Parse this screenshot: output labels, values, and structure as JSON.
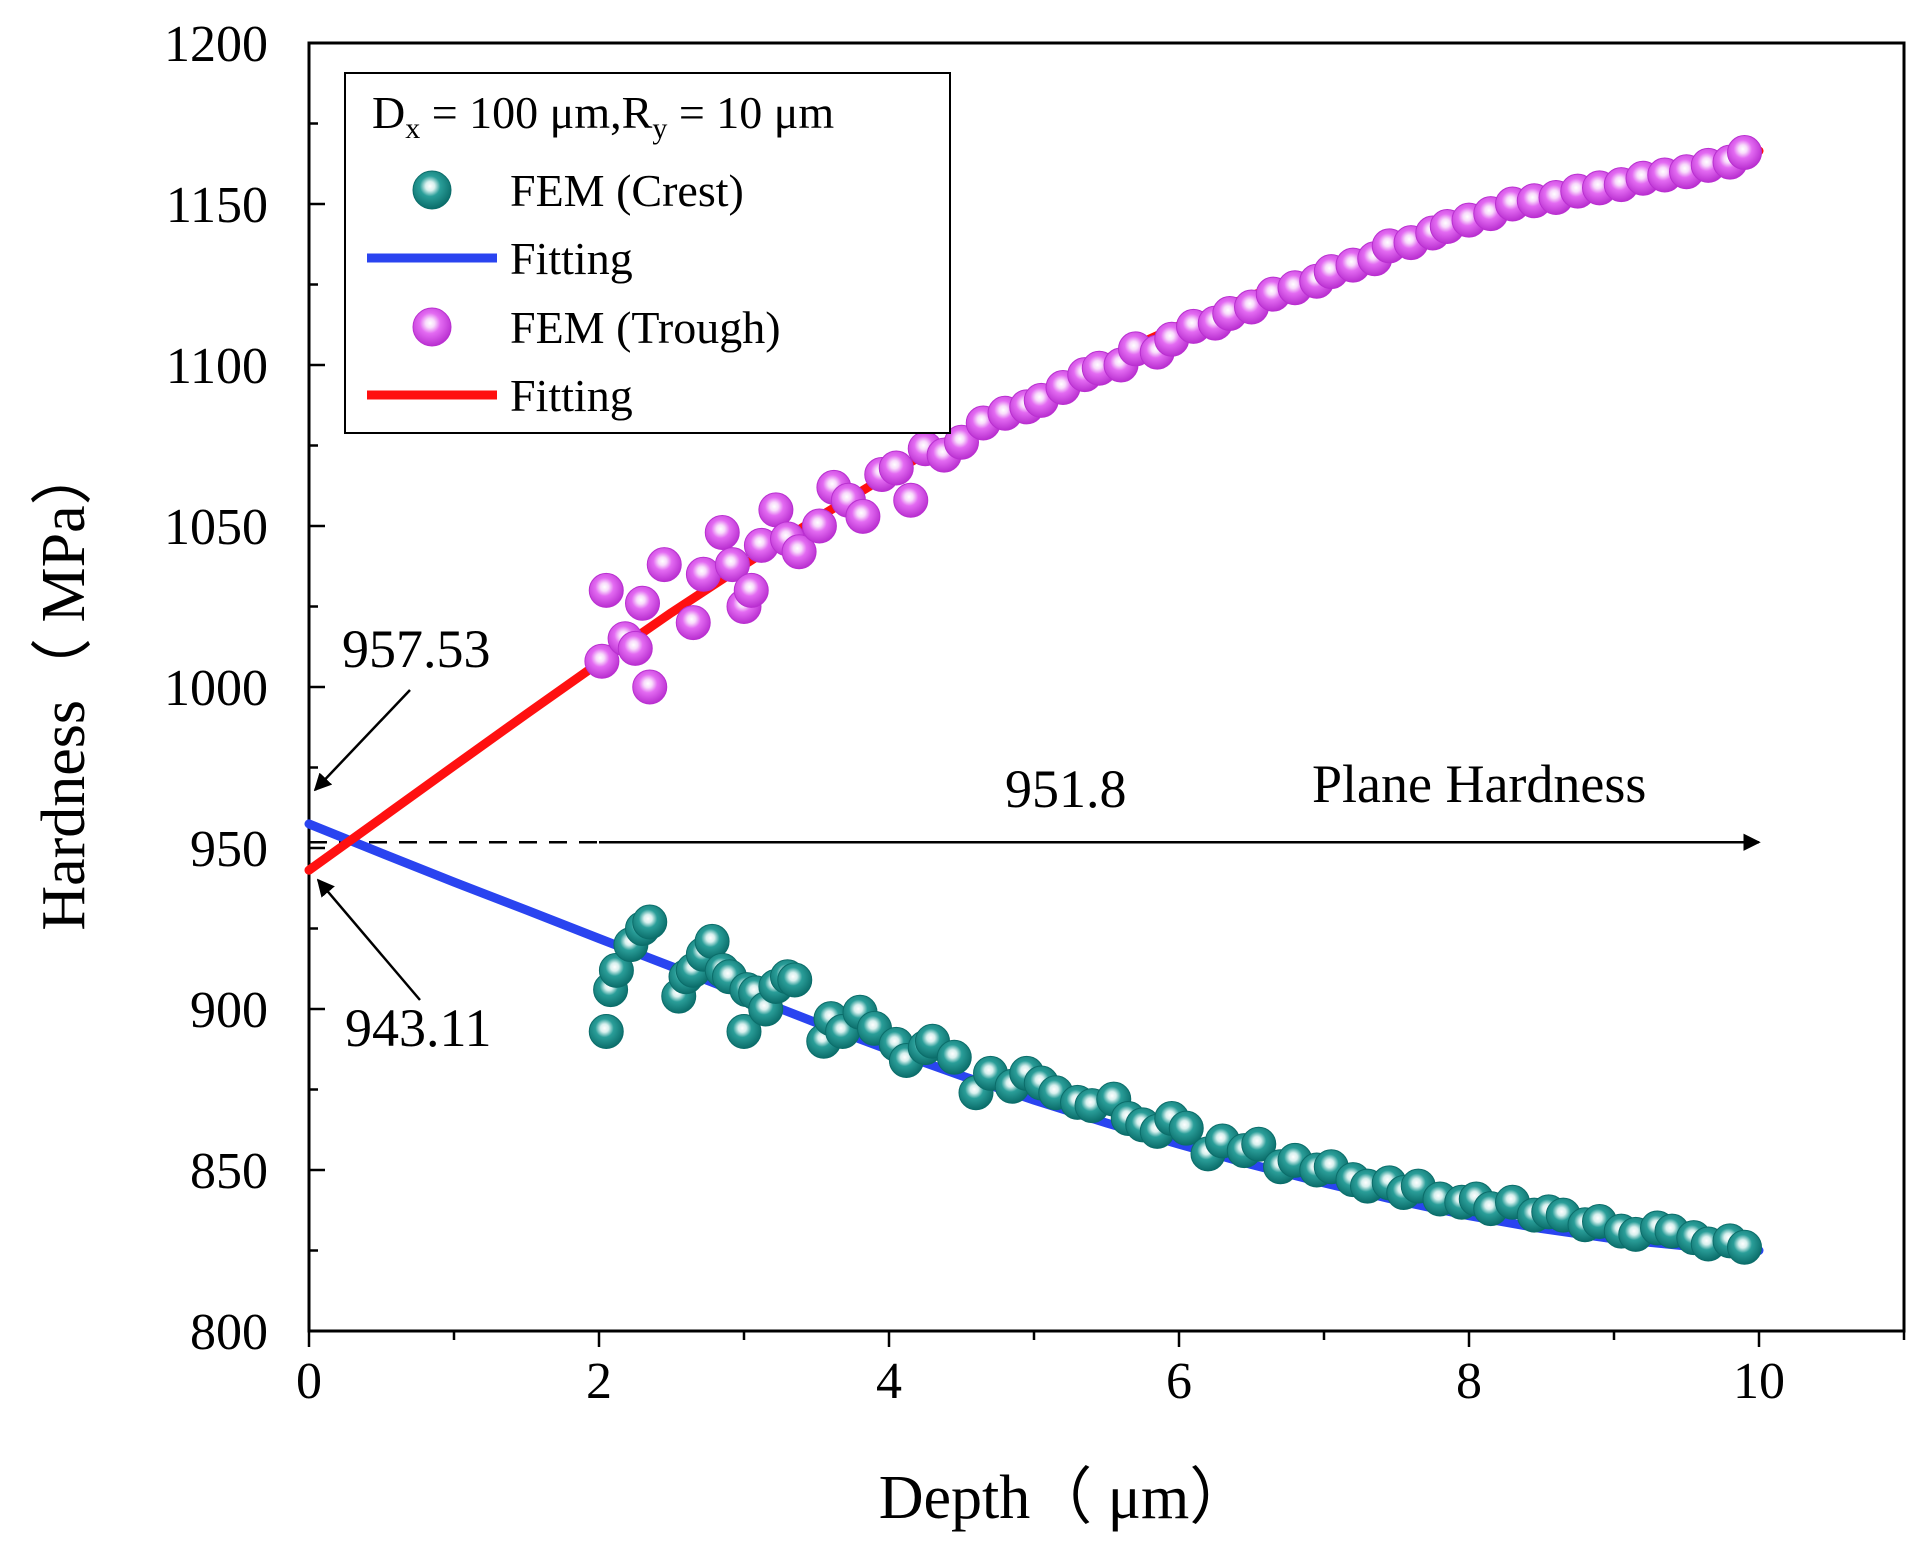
{
  "chart_data": {
    "type": "scatter",
    "xlabel": "Depth（  μm）",
    "ylabel": "Hardness（  MPa）",
    "xlim": [
      0,
      11
    ],
    "ylim": [
      800,
      1200
    ],
    "x_ticks": [
      0,
      2,
      4,
      6,
      8,
      10
    ],
    "y_ticks": [
      800,
      850,
      900,
      950,
      1000,
      1050,
      1100,
      1150,
      1200
    ],
    "grid": false,
    "legend": {
      "placement": "top-left",
      "title_parts": {
        "d": "D",
        "d_sub": "x",
        "mid": " = 100 μm,R",
        "r_sub": "y",
        "end": " = 10 μm"
      },
      "entries": [
        {
          "label": "FEM (Crest)",
          "kind": "marker",
          "color": "#138a86"
        },
        {
          "label": "Fitting",
          "kind": "line",
          "color": "#2a44f0"
        },
        {
          "label": "FEM (Trough)",
          "kind": "marker",
          "color": "#e052f0"
        },
        {
          "label": "Fitting",
          "kind": "line",
          "color": "#ff1010"
        }
      ]
    },
    "series": [
      {
        "name": "FEM (Crest)",
        "type": "scatter",
        "color": "#138a86",
        "x": [
          2.05,
          2.08,
          2.12,
          2.22,
          2.3,
          2.35,
          2.55,
          2.6,
          2.65,
          2.72,
          2.78,
          2.85,
          2.9,
          3.0,
          3.02,
          3.08,
          3.15,
          3.22,
          3.3,
          3.35,
          3.55,
          3.6,
          3.68,
          3.8,
          3.9,
          4.05,
          4.12,
          4.25,
          4.3,
          4.45,
          4.6,
          4.7,
          4.85,
          4.95,
          5.05,
          5.15,
          5.3,
          5.4,
          5.55,
          5.65,
          5.75,
          5.85,
          5.95,
          6.05,
          6.2,
          6.3,
          6.45,
          6.55,
          6.7,
          6.8,
          6.95,
          7.05,
          7.2,
          7.3,
          7.45,
          7.55,
          7.65,
          7.8,
          7.95,
          8.05,
          8.15,
          8.3,
          8.45,
          8.55,
          8.65,
          8.8,
          8.9,
          9.05,
          9.15,
          9.3,
          9.4,
          9.55,
          9.65,
          9.8,
          9.9
        ],
        "y": [
          893,
          906,
          912,
          920,
          925,
          927,
          904,
          910,
          912,
          917,
          921,
          912,
          910,
          893,
          906,
          905,
          900,
          907,
          910,
          909,
          890,
          897,
          893,
          899,
          894,
          889,
          884,
          888,
          890,
          885,
          874,
          880,
          876,
          880,
          877,
          874,
          871,
          870,
          872,
          866,
          864,
          862,
          866,
          863,
          855,
          859,
          856,
          858,
          851,
          853,
          850,
          851,
          847,
          845,
          846,
          843,
          845,
          841,
          840,
          841,
          838,
          840,
          836,
          837,
          836,
          833,
          834,
          831,
          830,
          832,
          831,
          829,
          827,
          828,
          826
        ]
      },
      {
        "name": "FEM (Trough)",
        "type": "scatter",
        "color": "#e052f0",
        "x": [
          2.02,
          2.05,
          2.18,
          2.25,
          2.3,
          2.35,
          2.45,
          2.65,
          2.72,
          2.85,
          2.92,
          3.0,
          3.05,
          3.12,
          3.22,
          3.3,
          3.38,
          3.52,
          3.62,
          3.72,
          3.82,
          3.95,
          4.05,
          4.15,
          4.25,
          4.38,
          4.5,
          4.65,
          4.8,
          4.95,
          5.05,
          5.2,
          5.35,
          5.45,
          5.6,
          5.7,
          5.85,
          5.95,
          6.1,
          6.25,
          6.35,
          6.5,
          6.65,
          6.8,
          6.95,
          7.05,
          7.2,
          7.35,
          7.45,
          7.6,
          7.75,
          7.85,
          8.0,
          8.15,
          8.3,
          8.45,
          8.6,
          8.75,
          8.9,
          9.05,
          9.2,
          9.35,
          9.5,
          9.65,
          9.8,
          9.9
        ],
        "y": [
          1008,
          1030,
          1015,
          1012,
          1026,
          1000,
          1038,
          1020,
          1035,
          1048,
          1038,
          1025,
          1030,
          1044,
          1055,
          1046,
          1042,
          1050,
          1062,
          1058,
          1053,
          1066,
          1068,
          1058,
          1074,
          1072,
          1076,
          1082,
          1085,
          1087,
          1089,
          1093,
          1097,
          1099,
          1100,
          1105,
          1104,
          1108,
          1112,
          1113,
          1116,
          1118,
          1122,
          1124,
          1126,
          1129,
          1131,
          1133,
          1137,
          1138,
          1141,
          1143,
          1145,
          1147,
          1150,
          1151,
          1152,
          1154,
          1155,
          1156,
          1158,
          1159,
          1160,
          1162,
          1163,
          1166
        ]
      },
      {
        "name": "Fitting",
        "type": "line",
        "color": "#2a44f0",
        "x": [
          0,
          0.5,
          1,
          1.5,
          2,
          2.5,
          3,
          3.5,
          4,
          4.5,
          5,
          5.5,
          6,
          6.5,
          7,
          7.5,
          8,
          8.5,
          9,
          9.5,
          10
        ],
        "y": [
          957.5,
          948.4,
          939.4,
          930.7,
          921.9,
          913.2,
          904.5,
          895.7,
          887.3,
          879.3,
          871.7,
          864.6,
          858.0,
          851.7,
          846.0,
          840.6,
          835.8,
          831.8,
          828.6,
          826.4,
          825.0
        ]
      },
      {
        "name": "Fitting",
        "type": "line",
        "color": "#ff1010",
        "x": [
          0,
          0.5,
          1,
          1.5,
          2,
          2.5,
          3,
          3.5,
          4,
          4.5,
          5,
          5.5,
          6,
          6.5,
          7,
          7.5,
          8,
          8.5,
          9,
          9.5,
          10
        ],
        "y": [
          943.1,
          959.3,
          975.5,
          991.6,
          1007.5,
          1023.1,
          1037.9,
          1052.3,
          1066.0,
          1078.9,
          1090.9,
          1102.0,
          1112.2,
          1121.5,
          1130.0,
          1137.7,
          1144.6,
          1151.2,
          1156.7,
          1161.7,
          1166.5
        ]
      }
    ],
    "annotations": [
      {
        "text": "957.53",
        "point": [
          0,
          957.53
        ]
      },
      {
        "text": "943.11",
        "point": [
          0,
          943.11
        ]
      },
      {
        "text": "951.8"
      },
      {
        "text": "Plane Hardness"
      }
    ],
    "reference_line": {
      "y": 951.8,
      "style": "dashed-then-solid-arrow",
      "x_range": [
        0,
        10
      ]
    }
  }
}
